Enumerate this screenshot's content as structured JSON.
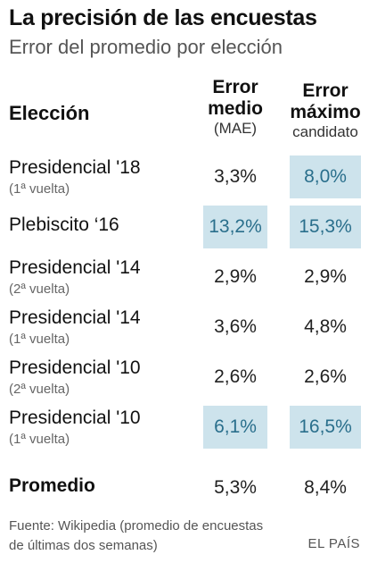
{
  "title": "La precisión de las encuestas",
  "subtitle": "Error del promedio por elección",
  "source": "Fuente: Wikipedia (promedio de encuestas de últimas dos semanas)",
  "brand": "EL PAÍS",
  "colors": {
    "highlight_bg": "#cde3ec",
    "highlight_text": "#2a6f8c"
  },
  "chart_data": {
    "type": "table",
    "title": "La precisión de las encuestas",
    "subtitle": "Error del promedio por elección",
    "columns": [
      {
        "key": "eleccion",
        "label": "Elección"
      },
      {
        "key": "mae",
        "label_main": "Error medio",
        "label_sub": "(MAE)"
      },
      {
        "key": "max",
        "label_main": "Error máximo",
        "label_sub": "candidato"
      }
    ],
    "rows": [
      {
        "name": "Presidencial '18",
        "sub": "(1ª vuelta)",
        "mae": "3,3%",
        "max": "8,0%",
        "mae_hl": false,
        "max_hl": true
      },
      {
        "name": "Plebiscito ‘16",
        "sub": "",
        "mae": "13,2%",
        "max": "15,3%",
        "mae_hl": true,
        "max_hl": true
      },
      {
        "name": "Presidencial '14",
        "sub": "(2ª vuelta)",
        "mae": "2,9%",
        "max": "2,9%",
        "mae_hl": false,
        "max_hl": false
      },
      {
        "name": "Presidencial '14",
        "sub": "(1ª vuelta)",
        "mae": "3,6%",
        "max": "4,8%",
        "mae_hl": false,
        "max_hl": false
      },
      {
        "name": "Presidencial '10",
        "sub": "(2ª vuelta)",
        "mae": "2,6%",
        "max": "2,6%",
        "mae_hl": false,
        "max_hl": false
      },
      {
        "name": "Presidencial '10",
        "sub": "(1ª vuelta)",
        "mae": "6,1%",
        "max": "16,5%",
        "mae_hl": true,
        "max_hl": true
      }
    ],
    "total": {
      "name": "Promedio",
      "mae": "5,3%",
      "max": "8,4%"
    }
  }
}
